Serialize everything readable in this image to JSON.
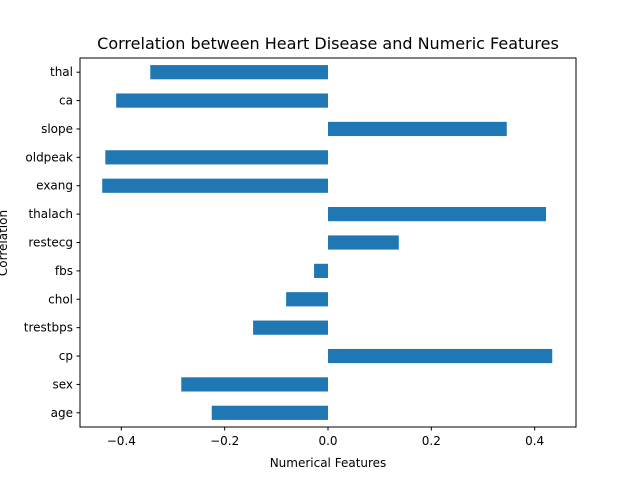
{
  "chart_data": {
    "type": "bar",
    "orientation": "horizontal",
    "title": "Correlation between Heart Disease and Numeric Features",
    "xlabel": "Numerical Features",
    "ylabel": "Correlation",
    "categories": [
      "age",
      "sex",
      "cp",
      "trestbps",
      "chol",
      "fbs",
      "restecg",
      "thalach",
      "exang",
      "oldpeak",
      "slope",
      "ca",
      "thal"
    ],
    "values": [
      -0.225,
      -0.284,
      0.434,
      -0.145,
      -0.081,
      -0.027,
      0.137,
      0.422,
      -0.437,
      -0.431,
      0.346,
      -0.41,
      -0.344
    ],
    "xlim": [
      -0.48,
      0.48
    ],
    "xticks": [
      -0.4,
      -0.2,
      0.0,
      0.2,
      0.4
    ],
    "xtick_labels": [
      "−0.4",
      "−0.2",
      "0.0",
      "0.2",
      "0.4"
    ],
    "bar_color": "#1f77b4",
    "grid": false,
    "legend": "none"
  }
}
